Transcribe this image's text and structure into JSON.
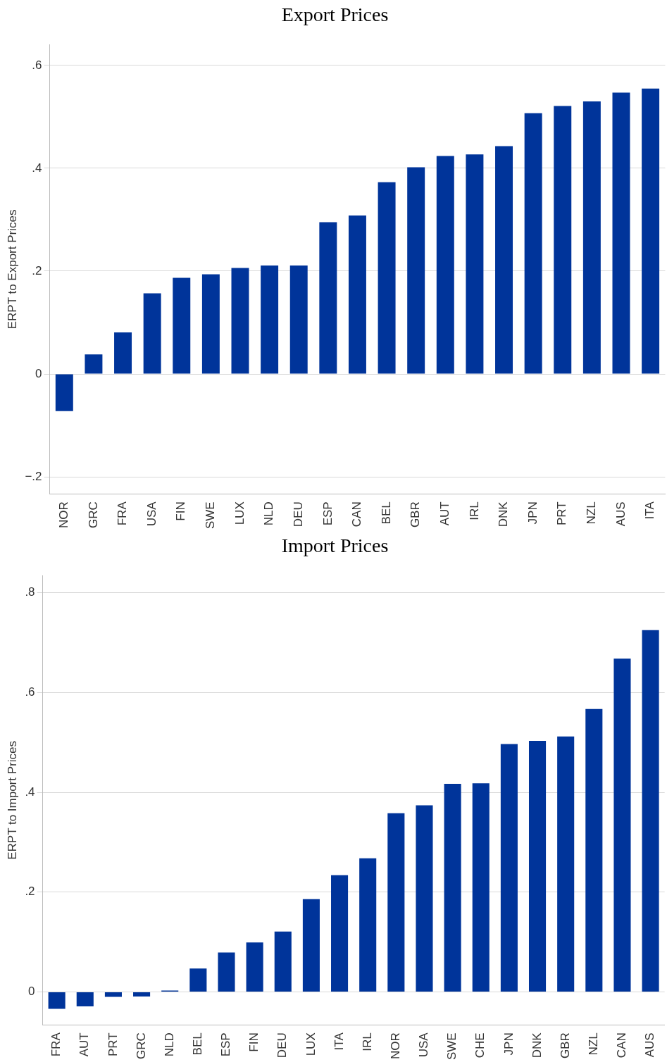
{
  "chart_data": [
    {
      "type": "bar",
      "title": "Export Prices",
      "ylabel": "ERPT to Export Prices",
      "categories": [
        "NOR",
        "GRC",
        "FRA",
        "USA",
        "FIN",
        "SWE",
        "LUX",
        "NLD",
        "DEU",
        "ESP",
        "CAN",
        "BEL",
        "GBR",
        "AUT",
        "IRL",
        "DNK",
        "JPN",
        "PRT",
        "NZL",
        "AUS",
        "ITA"
      ],
      "values": [
        -0.072,
        0.038,
        0.081,
        0.157,
        0.187,
        0.194,
        0.206,
        0.211,
        0.211,
        0.295,
        0.308,
        0.373,
        0.402,
        0.424,
        0.427,
        0.443,
        0.507,
        0.521,
        0.53,
        0.547,
        0.555
      ],
      "color": "#00349a",
      "ylim": [
        -0.233,
        0.64
      ],
      "yticks": [
        {
          "value": -0.2,
          "label": "−.2"
        },
        0,
        {
          "value": 0.2,
          "label": ".2"
        },
        {
          "value": 0.4,
          "label": ".4"
        },
        {
          "value": 0.6,
          "label": ".6"
        }
      ],
      "grid": "y",
      "legend": false
    },
    {
      "type": "bar",
      "title": "Import Prices",
      "ylabel": "ERPT to Import Prices",
      "categories": [
        "FRA",
        "AUT",
        "PRT",
        "GRC",
        "NLD",
        "BEL",
        "ESP",
        "FIN",
        "DEU",
        "LUX",
        "ITA",
        "IRL",
        "NOR",
        "USA",
        "SWE",
        "CHE",
        "JPN",
        "DNK",
        "GBR",
        "NZL",
        "CAN",
        "AUS"
      ],
      "values": [
        -0.034,
        -0.029,
        -0.01,
        -0.009,
        0.003,
        0.047,
        0.079,
        0.099,
        0.121,
        0.186,
        0.234,
        0.268,
        0.358,
        0.374,
        0.417,
        0.418,
        0.497,
        0.503,
        0.512,
        0.567,
        0.668,
        0.725
      ],
      "color": "#00349a",
      "ylim": [
        -0.066,
        0.834
      ],
      "yticks": [
        0,
        {
          "value": 0.2,
          "label": ".2"
        },
        {
          "value": 0.4,
          "label": ".4"
        },
        {
          "value": 0.6,
          "label": ".6"
        },
        {
          "value": 0.8,
          "label": ".8"
        }
      ],
      "grid": "y",
      "legend": false
    }
  ]
}
